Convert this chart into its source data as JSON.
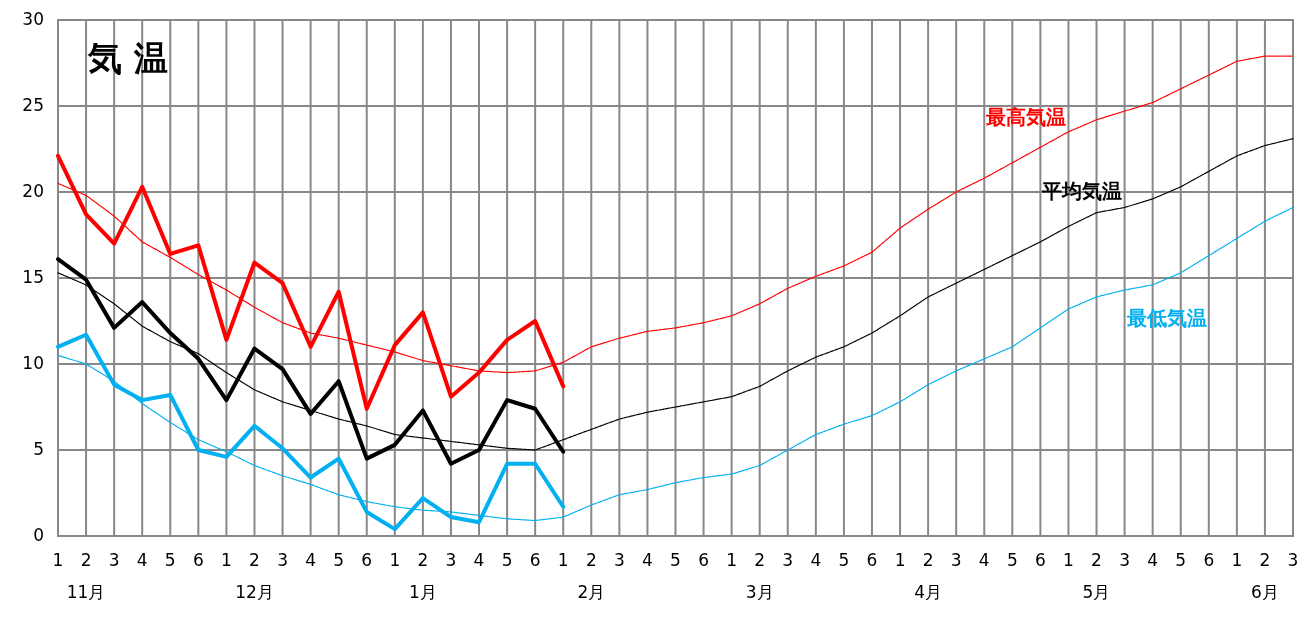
{
  "chart_data": {
    "type": "line",
    "title": "気 温",
    "categories": [
      "1",
      "2",
      "3",
      "4",
      "5",
      "6",
      "1",
      "2",
      "3",
      "4",
      "5",
      "6",
      "1",
      "2",
      "3",
      "4",
      "5",
      "6",
      "1",
      "2",
      "3",
      "4",
      "5",
      "6",
      "1",
      "2",
      "3",
      "4",
      "5",
      "6",
      "1",
      "2",
      "3",
      "4",
      "5",
      "6",
      "1",
      "2",
      "3",
      "4",
      "5",
      "6",
      "1",
      "2",
      "3"
    ],
    "annotations": [
      "11月",
      "12月",
      "1月",
      "2月",
      "3月",
      "4月",
      "5月",
      "6月"
    ],
    "ylim": [
      0,
      30
    ],
    "yticks": [
      0,
      5,
      10,
      15,
      20,
      25,
      30
    ],
    "grid": true,
    "marker": "none",
    "series": [
      {
        "color": "#ff0000",
        "line_style": "solid",
        "values": [
          22.1,
          18.7,
          17.0,
          20.3,
          16.4,
          16.9,
          11.4,
          15.9,
          14.7,
          11.0,
          14.2,
          7.4,
          11.1,
          13.0,
          8.1,
          9.5,
          11.4,
          12.5,
          8.7,
          null,
          null,
          null,
          null,
          null,
          null,
          null,
          null,
          null,
          null,
          null,
          null,
          null,
          null,
          null,
          null,
          null,
          null,
          null,
          null,
          null,
          null,
          null,
          null,
          null,
          null
        ]
      },
      {
        "color": "#000000",
        "line_style": "solid",
        "values": [
          16.1,
          14.9,
          12.1,
          13.6,
          11.8,
          10.3,
          7.9,
          10.9,
          9.7,
          7.1,
          9.0,
          4.5,
          5.3,
          7.3,
          4.2,
          5.0,
          7.9,
          7.4,
          4.9,
          null,
          null,
          null,
          null,
          null,
          null,
          null,
          null,
          null,
          null,
          null,
          null,
          null,
          null,
          null,
          null,
          null,
          null,
          null,
          null,
          null,
          null,
          null,
          null,
          null,
          null
        ]
      },
      {
        "color": "#00b0f0",
        "line_style": "solid",
        "values": [
          11.0,
          11.7,
          8.8,
          7.9,
          8.2,
          5.0,
          4.6,
          6.4,
          5.1,
          3.4,
          4.5,
          1.4,
          0.4,
          2.2,
          1.1,
          0.8,
          4.2,
          4.2,
          1.7,
          null,
          null,
          null,
          null,
          null,
          null,
          null,
          null,
          null,
          null,
          null,
          null,
          null,
          null,
          null,
          null,
          null,
          null,
          null,
          null,
          null,
          null,
          null,
          null,
          null,
          null
        ]
      },
      {
        "name": "最高気温",
        "color": "#ff0000",
        "line_style": "dotted",
        "values": [
          20.5,
          19.8,
          18.6,
          17.1,
          16.2,
          15.2,
          14.3,
          13.3,
          12.4,
          11.8,
          11.5,
          11.1,
          10.7,
          10.2,
          9.9,
          9.6,
          9.5,
          9.6,
          10.1,
          11.0,
          11.5,
          11.9,
          12.1,
          12.4,
          12.8,
          13.5,
          14.4,
          15.1,
          15.7,
          16.5,
          17.9,
          19.0,
          20.0,
          20.8,
          21.7,
          22.6,
          23.5,
          24.2,
          24.7,
          25.2,
          26.0,
          26.8,
          27.6,
          27.9,
          27.9
        ]
      },
      {
        "name": "平均気温",
        "color": "#000000",
        "line_style": "dotted",
        "values": [
          15.3,
          14.6,
          13.5,
          12.2,
          11.3,
          10.6,
          9.5,
          8.5,
          7.8,
          7.3,
          6.8,
          6.4,
          5.9,
          5.7,
          5.5,
          5.3,
          5.1,
          5.0,
          5.6,
          6.2,
          6.8,
          7.2,
          7.5,
          7.8,
          8.1,
          8.7,
          9.6,
          10.4,
          11.0,
          11.8,
          12.8,
          13.9,
          14.7,
          15.5,
          16.3,
          17.1,
          18.0,
          18.8,
          19.1,
          19.6,
          20.3,
          21.2,
          22.1,
          22.7,
          23.1
        ]
      },
      {
        "name": "最低気温",
        "color": "#00b0f0",
        "line_style": "dotted",
        "values": [
          10.5,
          10.0,
          9.0,
          7.7,
          6.6,
          5.6,
          4.9,
          4.1,
          3.5,
          3.0,
          2.4,
          2.0,
          1.7,
          1.5,
          1.4,
          1.2,
          1.0,
          0.9,
          1.1,
          1.8,
          2.4,
          2.7,
          3.1,
          3.4,
          3.6,
          4.1,
          5.0,
          5.9,
          6.5,
          7.0,
          7.8,
          8.8,
          9.6,
          10.3,
          11.0,
          12.1,
          13.2,
          13.9,
          14.3,
          14.6,
          15.3,
          16.3,
          17.3,
          18.3,
          19.1
        ]
      }
    ]
  }
}
